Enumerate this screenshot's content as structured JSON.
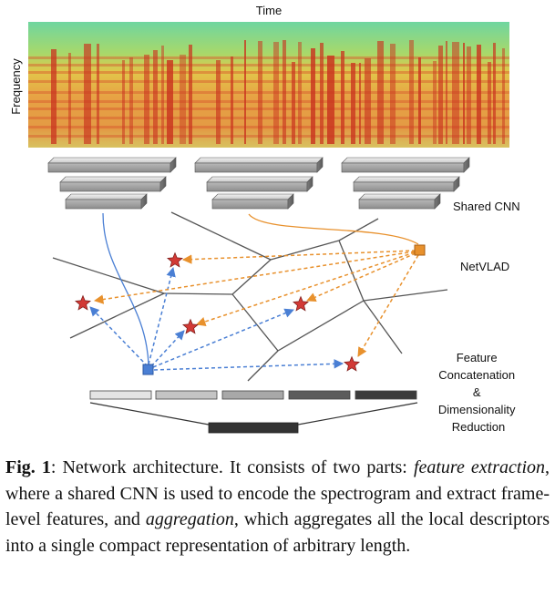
{
  "figure": {
    "spectrogram": {
      "x_label": "Time",
      "y_label": "Frequency"
    },
    "labels": {
      "cnn": "Shared CNN",
      "netvlad": "NetVLAD",
      "aggregation": [
        "Feature",
        "Concatenation",
        "&",
        "Dimensionality",
        "Reduction"
      ]
    },
    "colors": {
      "blue_descriptor": "#4a7fd4",
      "orange_descriptor": "#e8912d",
      "star": "#d23a36",
      "cluster_lines": "#555555"
    },
    "feature_bar_shades": [
      "#e4e4e4",
      "#c4c4c4",
      "#a8a8a8",
      "#5c5c5c",
      "#3b3b3b"
    ],
    "reduced_bar_shade": "#333333"
  },
  "caption": {
    "label": "Fig. 1",
    "text_1": ": Network architecture.  It consists of two parts: ",
    "italic_1": "feature extraction",
    "text_2": ", where a shared CNN is used to encode the spectrogram and extract frame-level features, and ",
    "italic_2": "aggregation",
    "text_3": ", which aggregates all the local descriptors into a single compact representation of arbitrary length."
  }
}
